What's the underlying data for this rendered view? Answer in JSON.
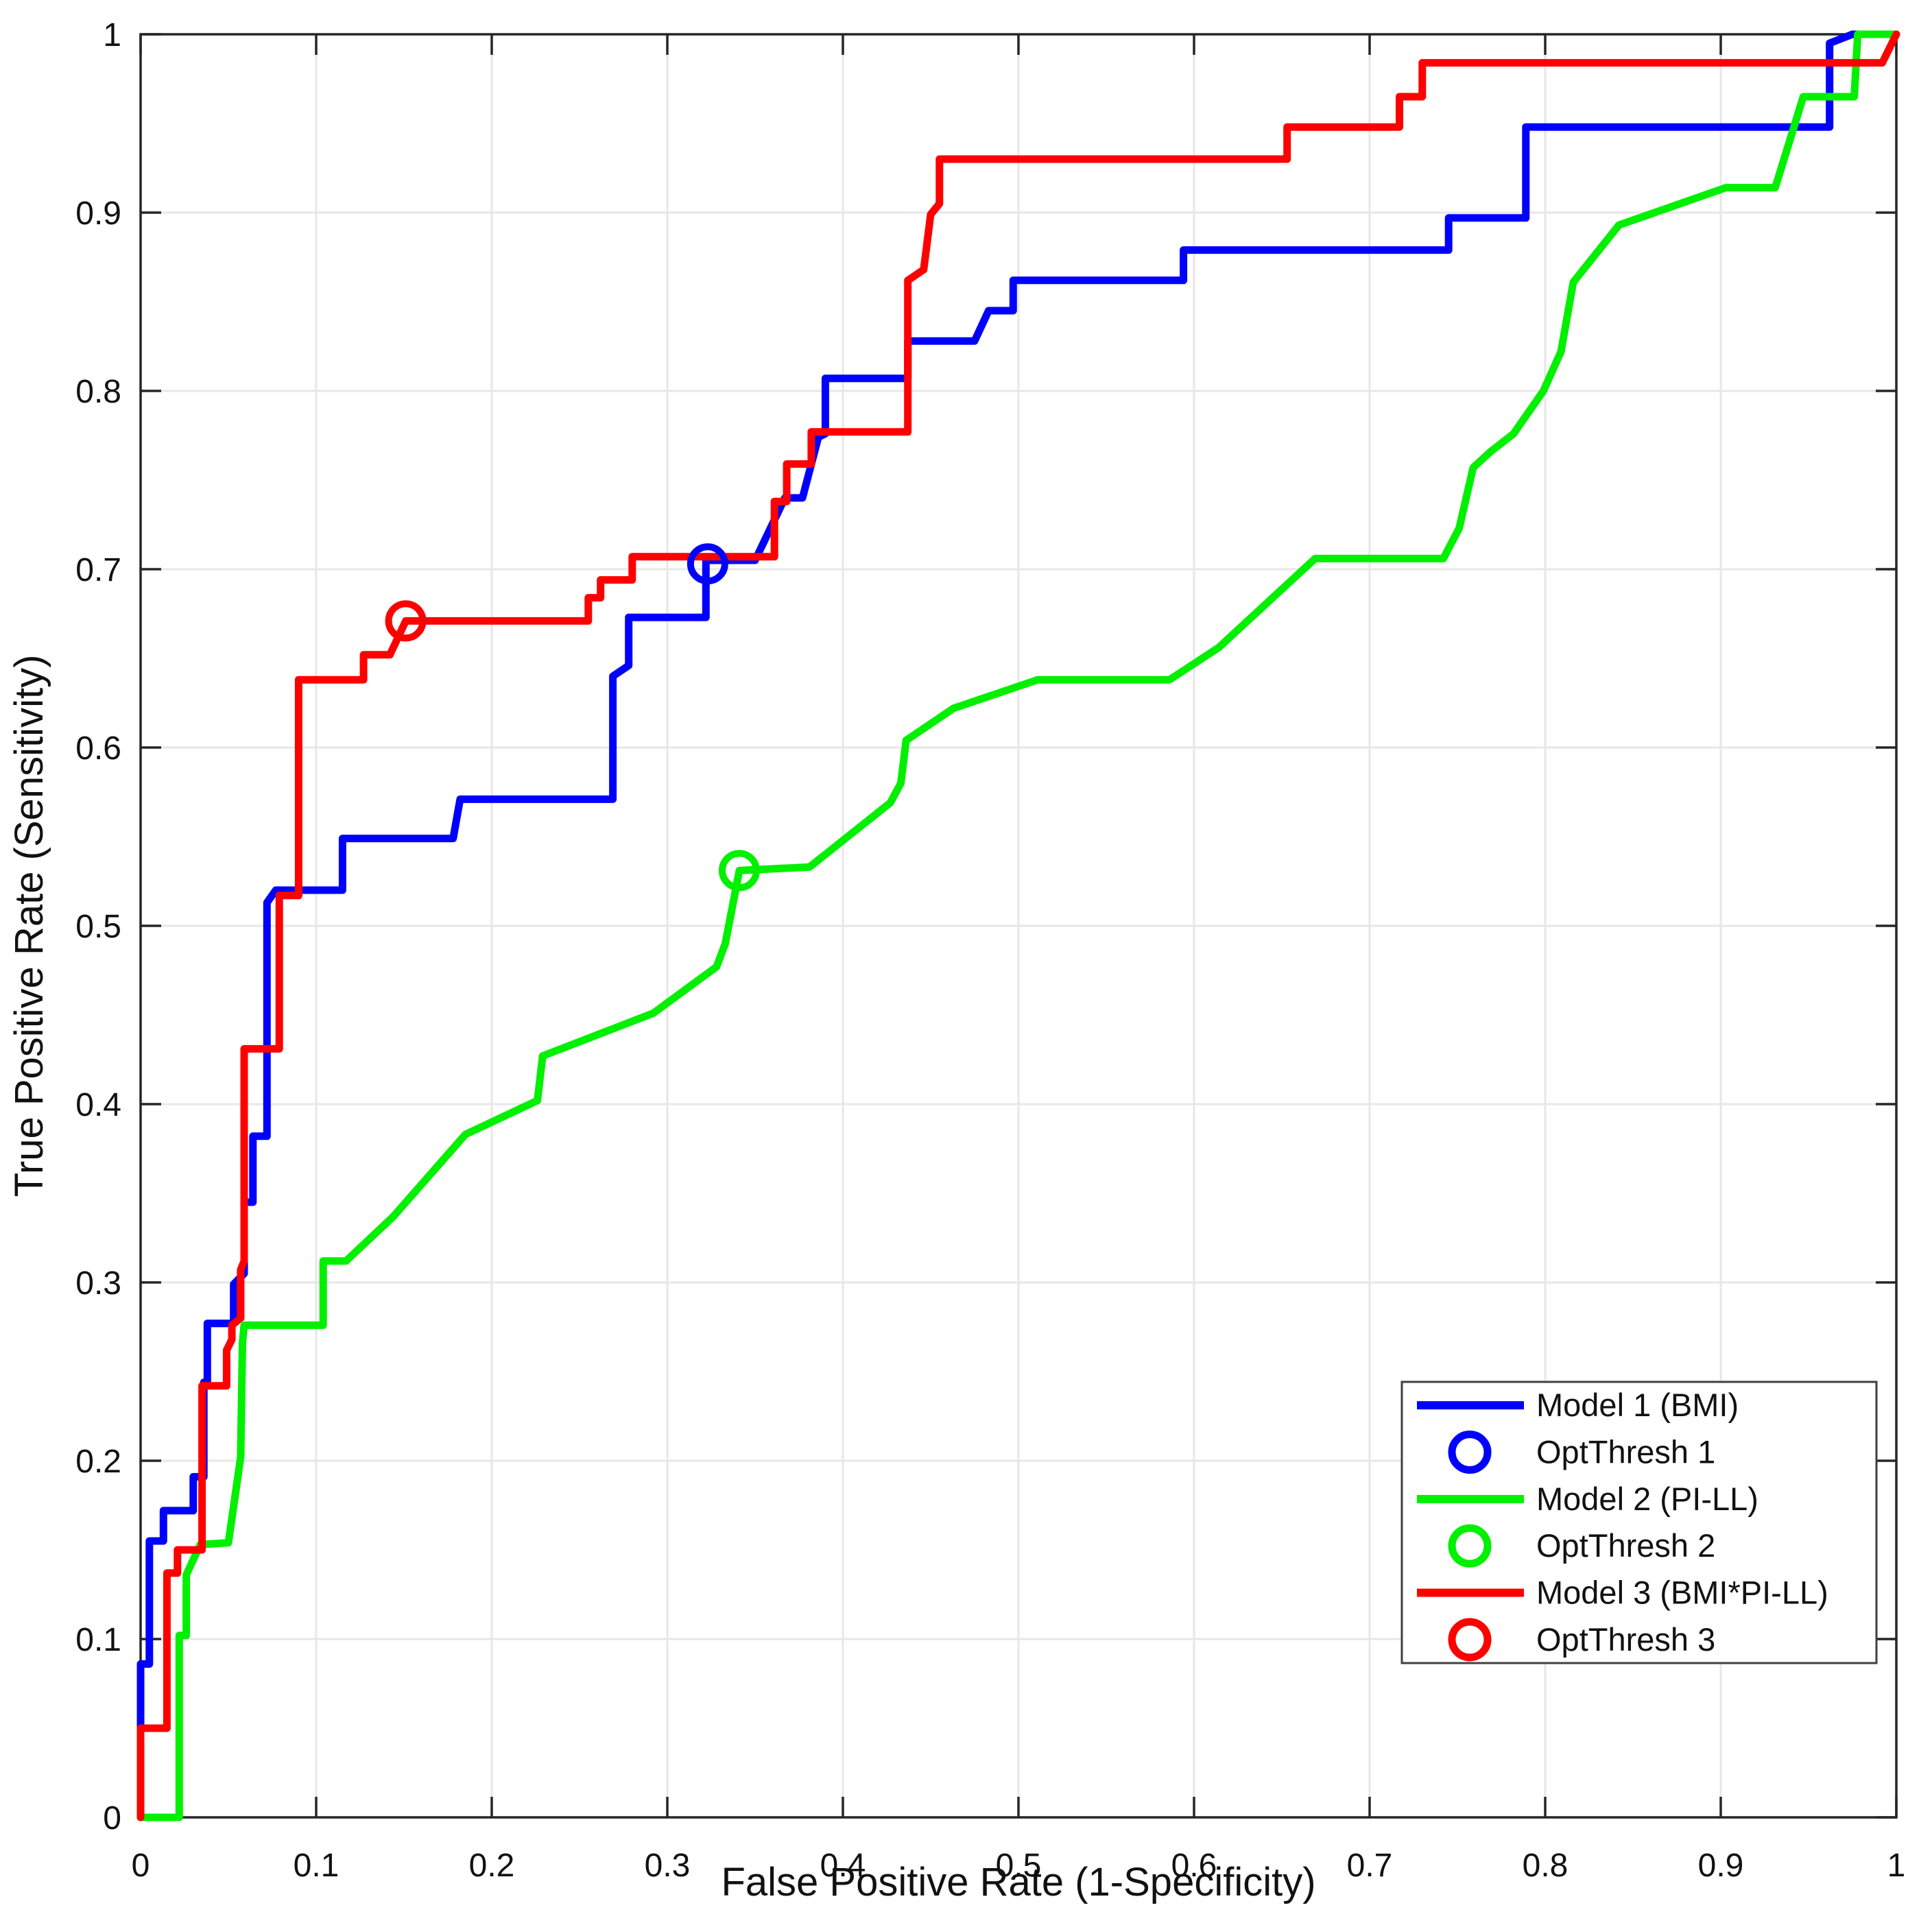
{
  "chart_data": {
    "type": "line",
    "subtype": "roc-curves",
    "title": "",
    "xlabel": "False Positive Rate (1-Specificity)",
    "ylabel": "True Positive Rate (Sensitivity)",
    "xlim": [
      0,
      1
    ],
    "ylim": [
      0,
      1
    ],
    "grid": true,
    "xticks": [
      0,
      0.1,
      0.2,
      0.3,
      0.4,
      0.5,
      0.6,
      0.7,
      0.8,
      0.9,
      1
    ],
    "xtick_labels": [
      "0",
      "0.1",
      "0.2",
      "0.3",
      "0.4",
      "0.5",
      "0.6",
      "0.7",
      "0.8",
      "0.9",
      "1"
    ],
    "yticks": [
      0,
      0.1,
      0.2,
      0.3,
      0.4,
      0.5,
      0.6,
      0.7,
      0.8,
      0.9,
      1
    ],
    "ytick_labels": [
      "0",
      "0.1",
      "0.2",
      "0.3",
      "0.4",
      "0.5",
      "0.6",
      "0.7",
      "0.8",
      "0.9",
      "1"
    ],
    "colors": {
      "model1": "#0000ff",
      "model2": "#00f000",
      "model3": "#ff0000",
      "axis": "#262626",
      "grid": "#e7e7e7",
      "text": "#111111",
      "legend_border": "#404040",
      "legend_bg": "#ffffff"
    },
    "legend": {
      "position": "southeast",
      "entries": [
        {
          "label": "Model 1 (BMI)",
          "type": "line",
          "color": "#0000ff"
        },
        {
          "label": "OptThresh 1",
          "type": "marker",
          "color": "#0000ff"
        },
        {
          "label": "Model 2 (PI-LL)",
          "type": "line",
          "color": "#00f000"
        },
        {
          "label": "OptThresh 2",
          "type": "marker",
          "color": "#00f000"
        },
        {
          "label": "Model 3 (BMI*PI-LL)",
          "type": "line",
          "color": "#ff0000"
        },
        {
          "label": "OptThresh 3",
          "type": "marker",
          "color": "#ff0000"
        }
      ]
    },
    "series": [
      {
        "name": "Model 1 (BMI)",
        "color": "#0000ff",
        "points": [
          [
            0,
            0
          ],
          [
            0,
            0.086
          ],
          [
            0.005,
            0.086
          ],
          [
            0.005,
            0.155
          ],
          [
            0.013,
            0.155
          ],
          [
            0.013,
            0.172
          ],
          [
            0.03,
            0.172
          ],
          [
            0.03,
            0.191
          ],
          [
            0.036,
            0.191
          ],
          [
            0.036,
            0.244
          ],
          [
            0.038,
            0.244
          ],
          [
            0.038,
            0.277
          ],
          [
            0.053,
            0.277
          ],
          [
            0.053,
            0.299
          ],
          [
            0.059,
            0.305
          ],
          [
            0.059,
            0.345
          ],
          [
            0.064,
            0.345
          ],
          [
            0.064,
            0.382
          ],
          [
            0.072,
            0.382
          ],
          [
            0.072,
            0.513
          ],
          [
            0.077,
            0.52
          ],
          [
            0.115,
            0.52
          ],
          [
            0.115,
            0.549
          ],
          [
            0.178,
            0.549
          ],
          [
            0.182,
            0.571
          ],
          [
            0.269,
            0.571
          ],
          [
            0.269,
            0.64
          ],
          [
            0.278,
            0.646
          ],
          [
            0.278,
            0.673
          ],
          [
            0.322,
            0.673
          ],
          [
            0.322,
            0.705
          ],
          [
            0.35,
            0.705
          ],
          [
            0.367,
            0.74
          ],
          [
            0.377,
            0.74
          ],
          [
            0.386,
            0.774
          ],
          [
            0.39,
            0.776
          ],
          [
            0.39,
            0.807
          ],
          [
            0.437,
            0.807
          ],
          [
            0.437,
            0.828
          ],
          [
            0.475,
            0.828
          ],
          [
            0.483,
            0.845
          ],
          [
            0.497,
            0.845
          ],
          [
            0.497,
            0.862
          ],
          [
            0.594,
            0.862
          ],
          [
            0.594,
            0.879
          ],
          [
            0.745,
            0.879
          ],
          [
            0.745,
            0.897
          ],
          [
            0.789,
            0.897
          ],
          [
            0.789,
            0.948
          ],
          [
            0.962,
            0.948
          ],
          [
            0.962,
            0.995
          ],
          [
            0.975,
            1
          ],
          [
            1,
            1
          ]
        ]
      },
      {
        "name": "Model 2 (PI-LL)",
        "color": "#00f000",
        "points": [
          [
            0,
            0
          ],
          [
            0.022,
            0
          ],
          [
            0.022,
            0.102
          ],
          [
            0.026,
            0.102
          ],
          [
            0.026,
            0.136
          ],
          [
            0.034,
            0.153
          ],
          [
            0.05,
            0.154
          ],
          [
            0.057,
            0.202
          ],
          [
            0.058,
            0.266
          ],
          [
            0.059,
            0.276
          ],
          [
            0.104,
            0.276
          ],
          [
            0.104,
            0.312
          ],
          [
            0.117,
            0.312
          ],
          [
            0.144,
            0.337
          ],
          [
            0.185,
            0.383
          ],
          [
            0.226,
            0.402
          ],
          [
            0.229,
            0.427
          ],
          [
            0.292,
            0.451
          ],
          [
            0.328,
            0.477
          ],
          [
            0.333,
            0.49
          ],
          [
            0.341,
            0.531
          ],
          [
            0.381,
            0.533
          ],
          [
            0.427,
            0.569
          ],
          [
            0.433,
            0.58
          ],
          [
            0.436,
            0.604
          ],
          [
            0.463,
            0.622
          ],
          [
            0.511,
            0.638
          ],
          [
            0.586,
            0.638
          ],
          [
            0.614,
            0.656
          ],
          [
            0.669,
            0.706
          ],
          [
            0.742,
            0.706
          ],
          [
            0.751,
            0.723
          ],
          [
            0.759,
            0.757
          ],
          [
            0.769,
            0.766
          ],
          [
            0.782,
            0.776
          ],
          [
            0.799,
            0.8
          ],
          [
            0.809,
            0.822
          ],
          [
            0.816,
            0.861
          ],
          [
            0.842,
            0.893
          ],
          [
            0.903,
            0.914
          ],
          [
            0.931,
            0.914
          ],
          [
            0.947,
            0.965
          ],
          [
            0.976,
            0.965
          ],
          [
            0.978,
            1
          ],
          [
            1,
            1
          ]
        ]
      },
      {
        "name": "Model 3 (BMI*PI-LL)",
        "color": "#ff0000",
        "points": [
          [
            0,
            0
          ],
          [
            0,
            0.05
          ],
          [
            0.015,
            0.05
          ],
          [
            0.015,
            0.137
          ],
          [
            0.021,
            0.137
          ],
          [
            0.021,
            0.15
          ],
          [
            0.035,
            0.15
          ],
          [
            0.035,
            0.242
          ],
          [
            0.049,
            0.242
          ],
          [
            0.049,
            0.262
          ],
          [
            0.052,
            0.268
          ],
          [
            0.052,
            0.276
          ],
          [
            0.057,
            0.28
          ],
          [
            0.057,
            0.307
          ],
          [
            0.059,
            0.312
          ],
          [
            0.059,
            0.431
          ],
          [
            0.079,
            0.431
          ],
          [
            0.079,
            0.517
          ],
          [
            0.09,
            0.517
          ],
          [
            0.09,
            0.638
          ],
          [
            0.127,
            0.638
          ],
          [
            0.127,
            0.652
          ],
          [
            0.142,
            0.652
          ],
          [
            0.151,
            0.671
          ],
          [
            0.255,
            0.671
          ],
          [
            0.255,
            0.684
          ],
          [
            0.262,
            0.684
          ],
          [
            0.262,
            0.694
          ],
          [
            0.28,
            0.694
          ],
          [
            0.28,
            0.707
          ],
          [
            0.361,
            0.707
          ],
          [
            0.361,
            0.738
          ],
          [
            0.368,
            0.738
          ],
          [
            0.368,
            0.759
          ],
          [
            0.382,
            0.759
          ],
          [
            0.382,
            0.777
          ],
          [
            0.437,
            0.777
          ],
          [
            0.437,
            0.862
          ],
          [
            0.446,
            0.868
          ],
          [
            0.45,
            0.899
          ],
          [
            0.455,
            0.905
          ],
          [
            0.455,
            0.93
          ],
          [
            0.653,
            0.93
          ],
          [
            0.653,
            0.948
          ],
          [
            0.717,
            0.948
          ],
          [
            0.717,
            0.965
          ],
          [
            0.73,
            0.965
          ],
          [
            0.73,
            0.984
          ],
          [
            0.992,
            0.984
          ],
          [
            1,
            1
          ]
        ]
      }
    ],
    "markers": [
      {
        "name": "OptThresh 1",
        "color": "#0000ff",
        "x": 0.323,
        "y": 0.703
      },
      {
        "name": "OptThresh 2",
        "color": "#00f000",
        "x": 0.341,
        "y": 0.531
      },
      {
        "name": "OptThresh 3",
        "color": "#ff0000",
        "x": 0.151,
        "y": 0.671
      }
    ]
  }
}
